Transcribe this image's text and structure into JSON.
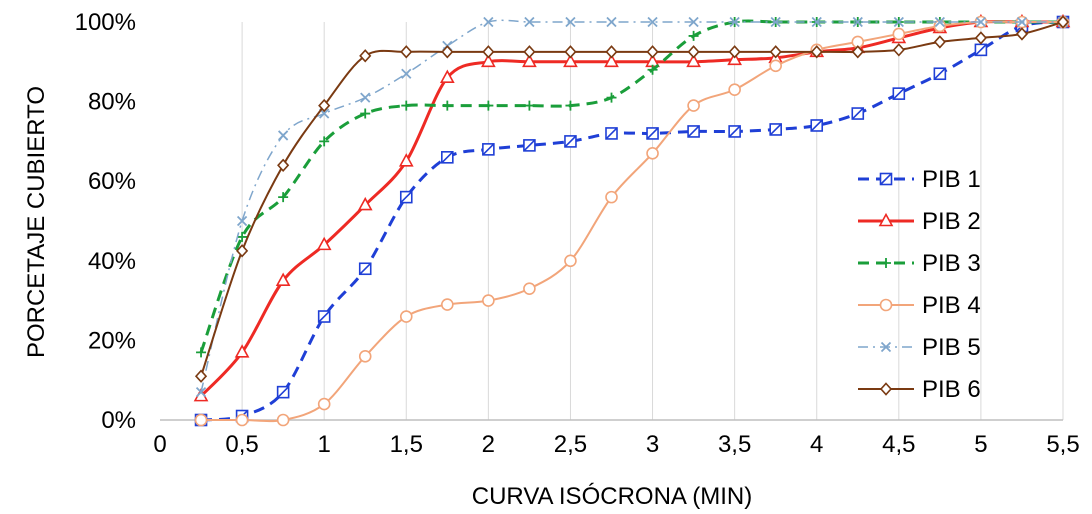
{
  "chart_data": {
    "type": "line",
    "title": "",
    "xlabel": "CURVA ISÓCRONA (MIN)",
    "ylabel": "PORCETAJE CUBIERTO",
    "xlim": [
      0,
      5.5
    ],
    "ylim": [
      0,
      100
    ],
    "x_ticks": [
      "0",
      "0,5",
      "1",
      "1,5",
      "2",
      "2,5",
      "3",
      "3,5",
      "4",
      "4,5",
      "5",
      "5,5"
    ],
    "y_ticks": [
      "0%",
      "20%",
      "40%",
      "60%",
      "80%",
      "100%"
    ],
    "grid": "vertical",
    "legend_position": "right",
    "x": [
      0.25,
      0.5,
      0.75,
      1,
      1.25,
      1.5,
      1.75,
      2,
      2.25,
      2.5,
      2.75,
      3,
      3.25,
      3.5,
      3.75,
      4,
      4.25,
      4.5,
      4.75,
      5,
      5.25,
      5.5
    ],
    "series": [
      {
        "name": "PIB 1",
        "color": "#1f3fd6",
        "marker": "square",
        "dash": "dash",
        "values": [
          0,
          1,
          7,
          26,
          38,
          56,
          66,
          68,
          69,
          70,
          72,
          72,
          72.5,
          72.5,
          73,
          74,
          77,
          82,
          87,
          93,
          99,
          100
        ]
      },
      {
        "name": "PIB 2",
        "color": "#ee2a24",
        "marker": "triangle",
        "dash": "solid",
        "values": [
          6,
          17,
          35,
          44,
          54,
          65,
          86,
          90,
          90,
          90,
          90,
          90,
          90,
          90.5,
          91,
          92.5,
          93.5,
          96,
          98.5,
          100,
          100,
          100
        ]
      },
      {
        "name": "PIB 3",
        "color": "#1a9e3a",
        "marker": "plus",
        "dash": "dash",
        "values": [
          17,
          46,
          56,
          70,
          77,
          79,
          79,
          79,
          79,
          79,
          81,
          88,
          96.5,
          100,
          100,
          100,
          100,
          100,
          100,
          100,
          100,
          100
        ]
      },
      {
        "name": "PIB 4",
        "color": "#f2a57a",
        "marker": "circle",
        "dash": "solid",
        "values": [
          0,
          0,
          0,
          4,
          16,
          26,
          29,
          30,
          33,
          40,
          56,
          67,
          79,
          83,
          89,
          93,
          95,
          97,
          99,
          100,
          100,
          100
        ]
      },
      {
        "name": "PIB 5",
        "color": "#7fa6cc",
        "marker": "x",
        "dash": "dashdot",
        "values": [
          7,
          50,
          71.5,
          77,
          81,
          87,
          94,
          100,
          100,
          100,
          100,
          100,
          100,
          100,
          100,
          100,
          100,
          100,
          100,
          100,
          100,
          100
        ]
      },
      {
        "name": "PIB 6",
        "color": "#7a3a12",
        "marker": "diamond",
        "dash": "solid",
        "values": [
          11,
          42.5,
          64,
          79,
          91.5,
          92.5,
          92.5,
          92.5,
          92.5,
          92.5,
          92.5,
          92.5,
          92.5,
          92.5,
          92.5,
          92.5,
          92.5,
          93,
          95,
          96,
          97,
          100
        ]
      }
    ]
  }
}
